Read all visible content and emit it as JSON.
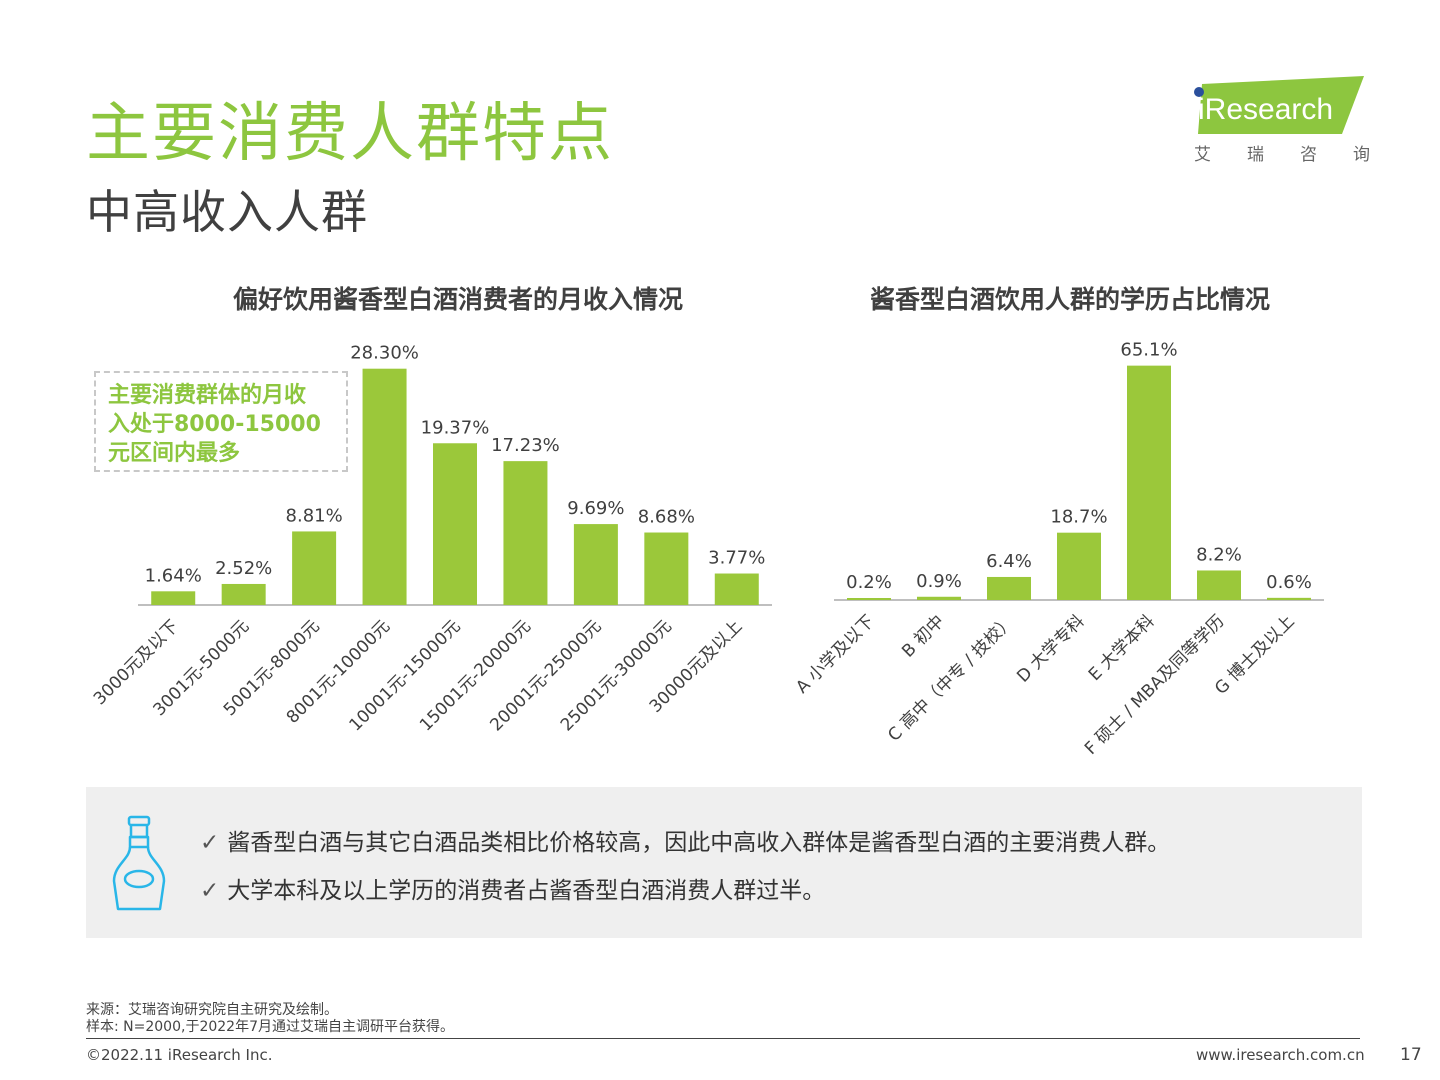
{
  "header": {
    "title": "主要消费人群特点",
    "subtitle": "中高收入人群"
  },
  "logo": {
    "brand": "iResearch",
    "cn_chars": [
      "艾",
      "瑞",
      "咨",
      "询"
    ]
  },
  "callout": {
    "lines": [
      "主要消费群体的月收",
      "入处于8000-15000",
      "元区间内最多"
    ]
  },
  "chart_data": [
    {
      "type": "bar",
      "title": "偏好饮用酱香型白酒消费者的月收入情况",
      "categories": [
        "3000元及以下",
        "3001元-5000元",
        "5001元-8000元",
        "8001元-10000元",
        "10001元-15000元",
        "15001元-20000元",
        "20001元-25000元",
        "25001元-30000元",
        "30000元及以上"
      ],
      "values": [
        1.64,
        2.52,
        8.81,
        28.3,
        19.37,
        17.23,
        9.69,
        8.68,
        3.77
      ],
      "labels": [
        "1.64%",
        "2.52%",
        "8.81%",
        "28.30%",
        "19.37%",
        "17.23%",
        "9.69%",
        "8.68%",
        "3.77%"
      ],
      "unit": "%",
      "color": "#9bc83a",
      "grid": false,
      "legend": false
    },
    {
      "type": "bar",
      "title": "酱香型白酒饮用人群的学历占比情况",
      "categories": [
        "A 小学及以下",
        "B 初中",
        "C 高中（中专 / 技校）",
        "D 大学专科",
        "E 大学本科",
        "F 硕士 / MBA及同等学历",
        "G 博士及以上"
      ],
      "values": [
        0.2,
        0.9,
        6.4,
        18.7,
        65.1,
        8.2,
        0.6
      ],
      "labels": [
        "0.2%",
        "0.9%",
        "6.4%",
        "18.7%",
        "65.1%",
        "8.2%",
        "0.6%"
      ],
      "unit": "%",
      "color": "#9bc83a",
      "grid": false,
      "legend": false
    }
  ],
  "summary": {
    "check": "✓",
    "lines": [
      "酱香型白酒与其它白酒品类相比价格较高，因此中高收入群体是酱香型白酒的主要消费人群。",
      "大学本科及以上学历的消费者占酱香型白酒消费人群过半。"
    ],
    "icon": "liquor-bottle-icon",
    "icon_color": "#29b6e8"
  },
  "footer": {
    "source": "来源：艾瑞咨询研究院自主研究及绘制。",
    "sample": "样本: N=2000,于2022年7月通过艾瑞自主调研平台获得。",
    "copyright": "©2022.11 iResearch Inc.",
    "url": "www.iresearch.com.cn",
    "page": "17"
  },
  "colors": {
    "accent": "#8dc63f",
    "bar": "#9bc83a",
    "summary_bg": "#efefef"
  }
}
